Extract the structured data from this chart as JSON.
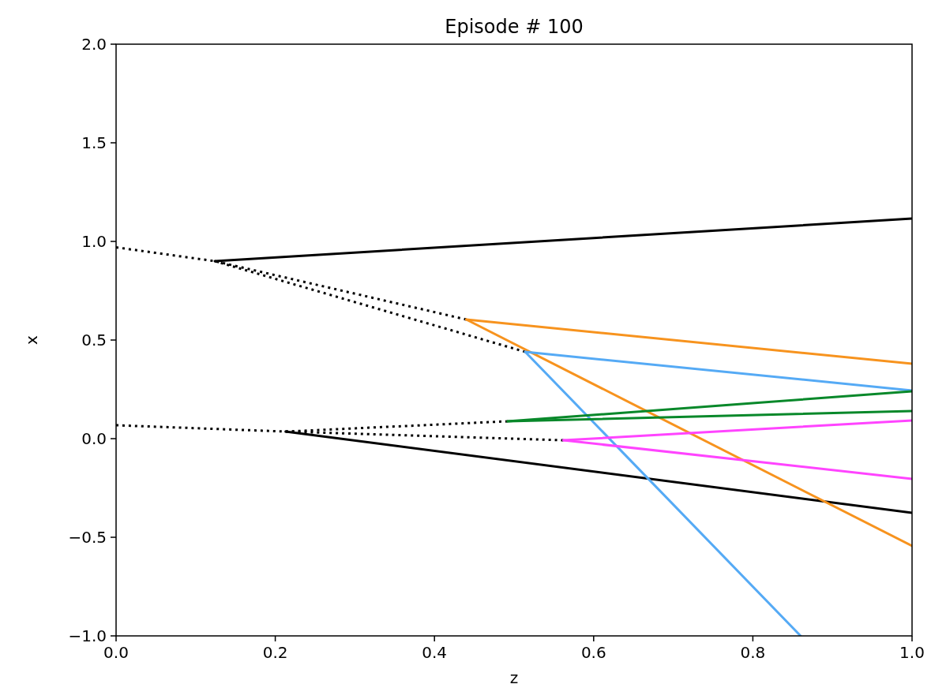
{
  "chart_data": {
    "type": "line",
    "title": "Episode # 100",
    "xlabel": "z",
    "ylabel": "x",
    "xlim": [
      0,
      1
    ],
    "ylim": [
      -1,
      2
    ],
    "xticks": [
      {
        "value": 0,
        "label": "0.0"
      },
      {
        "value": 0.2,
        "label": "0.2"
      },
      {
        "value": 0.4,
        "label": "0.4"
      },
      {
        "value": 0.6,
        "label": "0.6"
      },
      {
        "value": 0.8,
        "label": "0.8"
      },
      {
        "value": 1,
        "label": "1.0"
      }
    ],
    "yticks": [
      {
        "value": -1,
        "label": "−1.0"
      },
      {
        "value": -0.5,
        "label": "−0.5"
      },
      {
        "value": 0,
        "label": "0.0"
      },
      {
        "value": 0.5,
        "label": "0.5"
      },
      {
        "value": 1,
        "label": "1.0"
      },
      {
        "value": 1.5,
        "label": "1.5"
      },
      {
        "value": 2,
        "label": "2.0"
      }
    ],
    "grid": false,
    "marker": "none",
    "series": [
      {
        "color": "#000000",
        "line_style": "dotted",
        "x": [
          0,
          0.124,
          0.44
        ],
        "values": [
          0.97,
          0.9,
          0.604
        ]
      },
      {
        "color": "#000000",
        "line_style": "dotted",
        "x": [
          0.124,
          0.514
        ],
        "values": [
          0.9,
          0.44
        ]
      },
      {
        "color": "#000000",
        "line_style": "dotted",
        "x": [
          0,
          0.213,
          0.492
        ],
        "values": [
          0.068,
          0.036,
          0.088
        ]
      },
      {
        "color": "#000000",
        "line_style": "dotted",
        "x": [
          0.213,
          0.562
        ],
        "values": [
          0.036,
          -0.008
        ]
      },
      {
        "color": "#000000",
        "line_style": "solid",
        "x": [
          0.124,
          1
        ],
        "values": [
          0.9,
          1.116
        ]
      },
      {
        "color": "#000000",
        "line_style": "solid",
        "x": [
          0.213,
          1
        ],
        "values": [
          0.036,
          -0.376
        ]
      },
      {
        "color": "#f7931e",
        "line_style": "solid",
        "x": [
          0.44,
          1
        ],
        "values": [
          0.604,
          0.38
        ]
      },
      {
        "color": "#f7931e",
        "line_style": "solid",
        "x": [
          0.44,
          1
        ],
        "values": [
          0.604,
          -0.544
        ]
      },
      {
        "color": "#55aaf5",
        "line_style": "solid",
        "x": [
          0.514,
          1
        ],
        "values": [
          0.44,
          0.244
        ]
      },
      {
        "color": "#55aaf5",
        "line_style": "solid",
        "x": [
          0.514,
          0.86
        ],
        "values": [
          0.44,
          -1
        ]
      },
      {
        "color": "#08882a",
        "line_style": "solid",
        "x": [
          0.492,
          1
        ],
        "values": [
          0.088,
          0.24
        ]
      },
      {
        "color": "#08882a",
        "line_style": "solid",
        "x": [
          0.492,
          1
        ],
        "values": [
          0.088,
          0.14
        ]
      },
      {
        "color": "#ff44ff",
        "line_style": "solid",
        "x": [
          0.562,
          1
        ],
        "values": [
          -0.008,
          0.092
        ]
      },
      {
        "color": "#ff44ff",
        "line_style": "solid",
        "x": [
          0.562,
          1
        ],
        "values": [
          -0.008,
          -0.204
        ]
      }
    ]
  }
}
